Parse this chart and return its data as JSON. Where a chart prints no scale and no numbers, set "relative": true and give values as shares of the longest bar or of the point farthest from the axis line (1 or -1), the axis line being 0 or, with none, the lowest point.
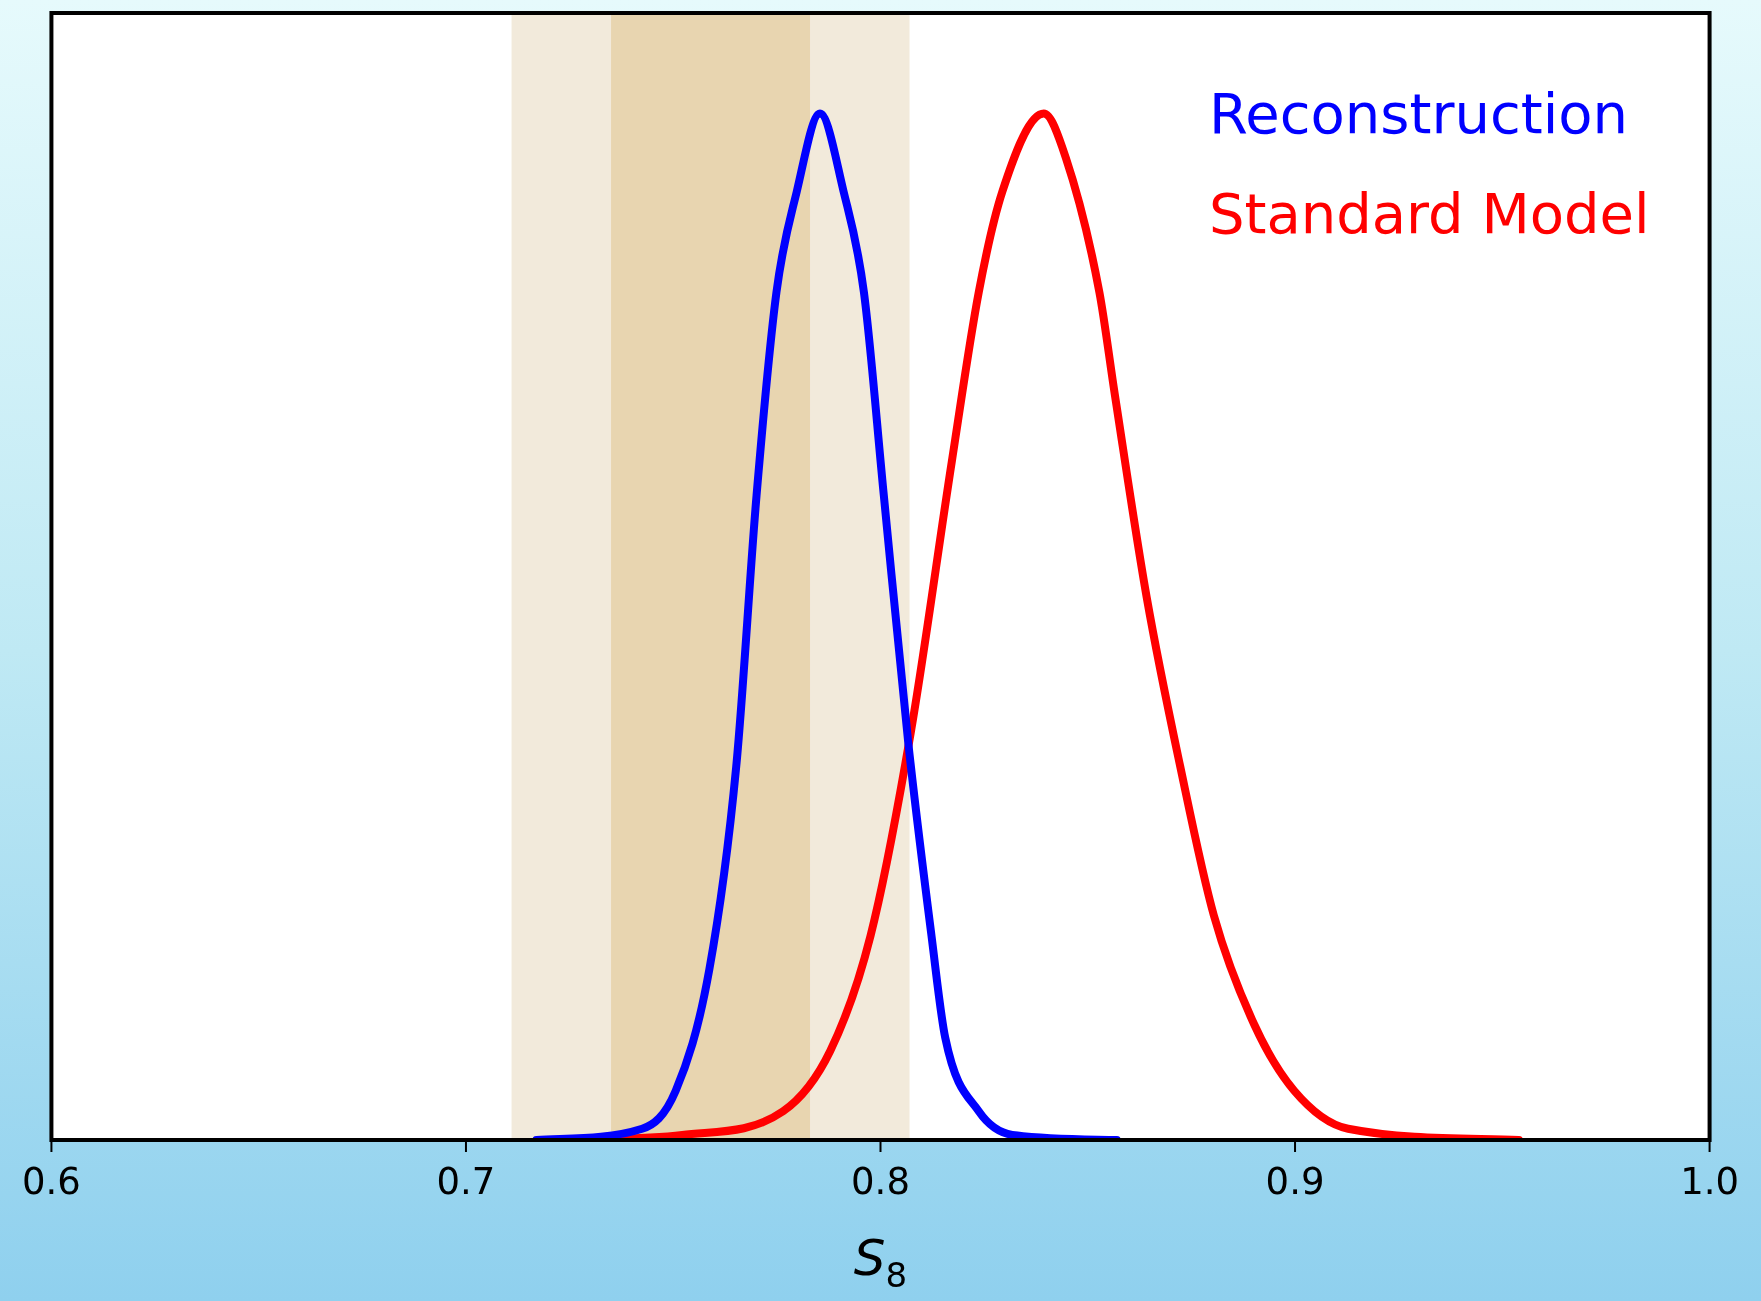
{
  "chart_data": {
    "type": "line",
    "relative": true,
    "xlabel": "S$_{8}$",
    "xlim": [
      0.6,
      1.0
    ],
    "xticks": [
      0.6,
      0.7,
      0.8,
      0.9,
      {
        "value": 1.0,
        "label": "1.0"
      }
    ],
    "legend": "top right",
    "grid": false,
    "marker": "none",
    "line_style": "solid",
    "bands": [
      {
        "axis": "x",
        "from": 0.711,
        "to": 0.807,
        "color": "#f2eadb"
      },
      {
        "axis": "x",
        "from": 0.735,
        "to": 0.783,
        "color": "#e8d5b0"
      }
    ],
    "series": [
      {
        "name": "Reconstruction",
        "color": "#0000ff",
        "x": [
          0.717,
          0.7425,
          0.7506,
          0.7587,
          0.7652,
          0.7701,
          0.7749,
          0.7798,
          0.7854,
          0.7911,
          0.796,
          0.8008,
          0.8067,
          0.8123,
          0.8156,
          0.8237,
          0.8318,
          0.857
        ],
        "values": [
          0,
          0.011,
          0.048,
          0.166,
          0.364,
          0.628,
          0.826,
          0.924,
          1,
          0.924,
          0.826,
          0.628,
          0.387,
          0.199,
          0.1,
          0.028,
          0.005,
          0
        ]
      },
      {
        "name": "Standard Model",
        "color": "#ff0000",
        "x": [
          0.725,
          0.7522,
          0.7765,
          0.7879,
          0.7976,
          0.8073,
          0.8172,
          0.8237,
          0.8294,
          0.8394,
          0.8447,
          0.8528,
          0.8565,
          0.8642,
          0.8723,
          0.8804,
          0.8901,
          0.8998,
          0.9128,
          0.954
        ],
        "values": [
          0,
          0.005,
          0.028,
          0.087,
          0.199,
          0.397,
          0.661,
          0.826,
          0.924,
          1,
          0.957,
          0.826,
          0.727,
          0.529,
          0.364,
          0.219,
          0.113,
          0.048,
          0.011,
          0
        ]
      }
    ]
  }
}
